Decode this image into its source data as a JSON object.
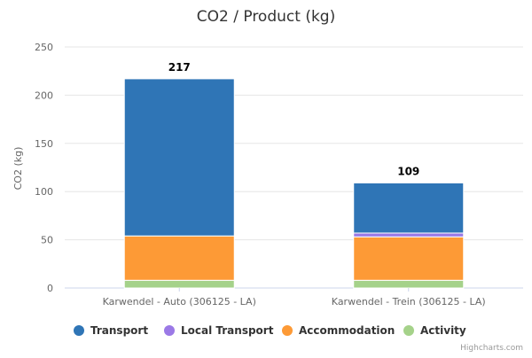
{
  "chart_data": {
    "type": "bar",
    "stacked": true,
    "title": "CO2 / Product (kg)",
    "ylabel": "CO2 (kg)",
    "xlabel": "",
    "ylim": [
      0,
      250
    ],
    "yticks": [
      0,
      50,
      100,
      150,
      200,
      250
    ],
    "grid": true,
    "legend_position": "bottom",
    "categories": [
      "Karwendel - Auto (306125 - LA)",
      "Karwendel - Trein (306125 - LA)"
    ],
    "totals": [
      217,
      109
    ],
    "series": [
      {
        "name": "Activity",
        "color": "#a5d28a",
        "values": [
          8,
          8
        ]
      },
      {
        "name": "Accommodation",
        "color": "#fd9a36",
        "values": [
          46,
          45
        ]
      },
      {
        "name": "Local Transport",
        "color": "#9b79e6",
        "values": [
          0,
          4
        ]
      },
      {
        "name": "Transport",
        "color": "#2f75b6",
        "values": [
          163,
          52
        ]
      }
    ],
    "legend_order": [
      "Transport",
      "Local Transport",
      "Accommodation",
      "Activity"
    ]
  },
  "credits": "Highcharts.com"
}
